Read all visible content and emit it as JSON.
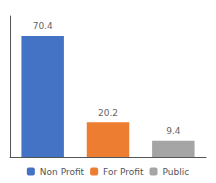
{
  "chart_data": {
    "type": "bar",
    "categories": [
      "Non Profit",
      "For Profit",
      "Public"
    ],
    "values": [
      70.4,
      20.2,
      9.4
    ],
    "colors": [
      "#4472c4",
      "#ed7d31",
      "#a5a5a5"
    ],
    "ylim": [
      0,
      82
    ],
    "data_labels": true,
    "tick_labels": false,
    "grid": false,
    "legend": "bottom"
  }
}
